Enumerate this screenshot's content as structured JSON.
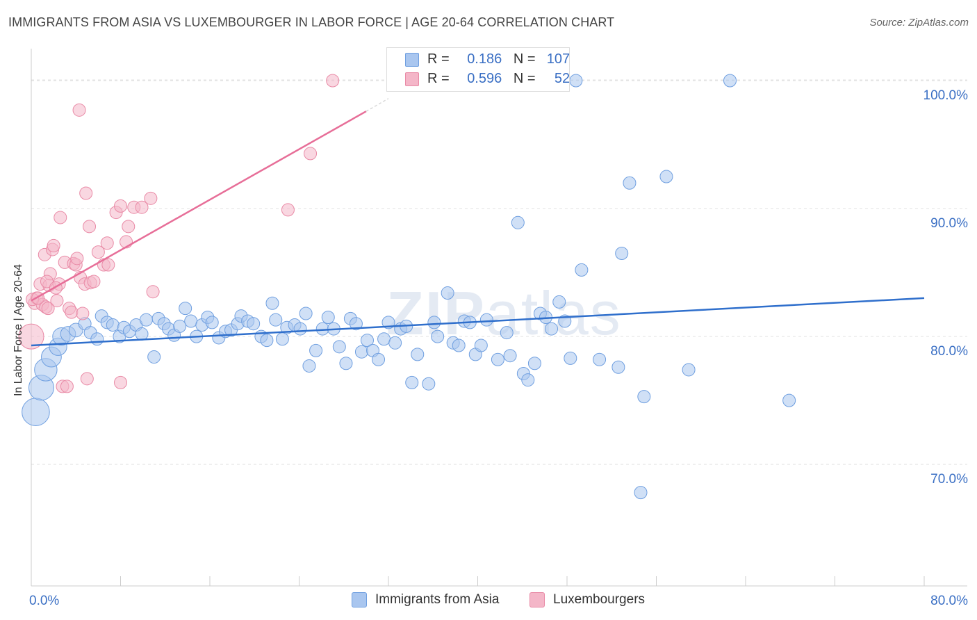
{
  "header": {
    "title": "IMMIGRANTS FROM ASIA VS LUXEMBOURGER IN LABOR FORCE | AGE 20-64 CORRELATION CHART",
    "source": "Source: ZipAtlas.com"
  },
  "watermark": {
    "bold": "ZIP",
    "light": "atlas"
  },
  "legend_stats": [
    {
      "r_label": "R =",
      "r_value": "0.186",
      "n_label": "N =",
      "n_value": "107",
      "color": "#a9c6ef"
    },
    {
      "r_label": "R =",
      "r_value": "0.596",
      "n_label": "N =",
      "n_value": "52",
      "color": "#f4b6c8"
    }
  ],
  "chart_data": {
    "type": "scatter",
    "title": "IMMIGRANTS FROM ASIA VS LUXEMBOURGER IN LABOR FORCE | AGE 20-64 CORRELATION CHART",
    "xlabel": "",
    "ylabel": "In Labor Force | Age 20-64",
    "xlim": [
      0,
      80
    ],
    "ylim": [
      60.5,
      102.5
    ],
    "x_tick_labels": [
      {
        "value": 0,
        "label": "0.0%"
      },
      {
        "value": 80,
        "label": "80.0%"
      }
    ],
    "y_tick_labels": [
      {
        "value": 70,
        "label": "70.0%"
      },
      {
        "value": 80,
        "label": "80.0%"
      },
      {
        "value": 90,
        "label": "90.0%"
      },
      {
        "value": 100,
        "label": "100.0%"
      }
    ],
    "grid": true,
    "legend_position": "bottom",
    "series": [
      {
        "name": "Immigrants from Asia",
        "color": "#a9c6ef",
        "stroke": "#6f9fe0",
        "trend_color": "#2f6fcc",
        "trend": {
          "x0": 0,
          "y0": 79.3,
          "x1": 80,
          "y1": 83.0
        },
        "points": [
          [
            0.4,
            74.1,
            2.2
          ],
          [
            0.9,
            76.0,
            2.0
          ],
          [
            1.3,
            77.4,
            1.8
          ],
          [
            1.8,
            78.4,
            1.6
          ],
          [
            2.4,
            79.2,
            1.4
          ],
          [
            2.7,
            80.0,
            1.4
          ],
          [
            3.3,
            80.2,
            1.2
          ],
          [
            4.0,
            80.5,
            1.1
          ],
          [
            4.8,
            81.0,
            1.0
          ],
          [
            5.3,
            80.3,
            1.0
          ],
          [
            5.9,
            79.8,
            1.0
          ],
          [
            6.3,
            81.6,
            1.0
          ],
          [
            6.8,
            81.1,
            1.0
          ],
          [
            7.3,
            80.9,
            1.0
          ],
          [
            7.9,
            80.0,
            1.0
          ],
          [
            8.3,
            80.7,
            1.0
          ],
          [
            8.8,
            80.4,
            1.0
          ],
          [
            9.4,
            80.9,
            1.0
          ],
          [
            9.9,
            80.2,
            1.0
          ],
          [
            10.3,
            81.3,
            1.0
          ],
          [
            11.0,
            78.4,
            1.0
          ],
          [
            11.4,
            81.4,
            1.0
          ],
          [
            11.9,
            81.0,
            1.0
          ],
          [
            12.3,
            80.6,
            1.0
          ],
          [
            12.8,
            80.1,
            1.0
          ],
          [
            13.3,
            80.8,
            1.0
          ],
          [
            13.8,
            82.2,
            1.0
          ],
          [
            14.3,
            81.2,
            1.0
          ],
          [
            14.8,
            80.0,
            1.0
          ],
          [
            15.3,
            80.9,
            1.0
          ],
          [
            15.8,
            81.5,
            1.0
          ],
          [
            16.2,
            81.1,
            1.0
          ],
          [
            16.8,
            79.9,
            1.0
          ],
          [
            17.4,
            80.4,
            1.0
          ],
          [
            17.9,
            80.5,
            1.0
          ],
          [
            18.5,
            81.0,
            1.0
          ],
          [
            18.8,
            81.6,
            1.0
          ],
          [
            19.4,
            81.2,
            1.0
          ],
          [
            19.9,
            81.0,
            1.0
          ],
          [
            20.6,
            80.0,
            1.0
          ],
          [
            21.1,
            79.7,
            1.0
          ],
          [
            21.6,
            82.6,
            1.0
          ],
          [
            21.9,
            81.3,
            1.0
          ],
          [
            22.5,
            79.8,
            1.0
          ],
          [
            22.9,
            80.7,
            1.0
          ],
          [
            23.6,
            80.9,
            1.0
          ],
          [
            24.1,
            80.6,
            1.0
          ],
          [
            24.6,
            81.8,
            1.0
          ],
          [
            24.9,
            77.7,
            1.0
          ],
          [
            25.5,
            78.9,
            1.0
          ],
          [
            26.1,
            80.6,
            1.0
          ],
          [
            26.6,
            81.5,
            1.0
          ],
          [
            27.1,
            80.6,
            1.0
          ],
          [
            27.6,
            79.2,
            1.0
          ],
          [
            28.2,
            77.9,
            1.0
          ],
          [
            28.6,
            81.4,
            1.0
          ],
          [
            29.1,
            81.0,
            1.0
          ],
          [
            29.6,
            78.8,
            1.0
          ],
          [
            30.1,
            79.7,
            1.0
          ],
          [
            30.6,
            78.9,
            1.0
          ],
          [
            31.1,
            78.2,
            1.0
          ],
          [
            31.6,
            79.8,
            1.0
          ],
          [
            32.0,
            81.1,
            1.0
          ],
          [
            32.6,
            79.5,
            1.0
          ],
          [
            33.1,
            80.6,
            1.0
          ],
          [
            33.6,
            80.8,
            1.0
          ],
          [
            34.1,
            76.4,
            1.0
          ],
          [
            34.6,
            78.6,
            1.0
          ],
          [
            35.6,
            76.3,
            1.0
          ],
          [
            36.1,
            81.1,
            1.0
          ],
          [
            36.4,
            80.0,
            1.0
          ],
          [
            37.3,
            83.4,
            1.0
          ],
          [
            37.8,
            79.5,
            1.0
          ],
          [
            38.3,
            79.3,
            1.0
          ],
          [
            38.8,
            81.2,
            1.0
          ],
          [
            39.3,
            81.1,
            1.0
          ],
          [
            39.8,
            78.6,
            1.0
          ],
          [
            40.3,
            79.3,
            1.0
          ],
          [
            40.8,
            81.3,
            1.0
          ],
          [
            41.8,
            78.2,
            1.0
          ],
          [
            42.6,
            80.3,
            1.0
          ],
          [
            42.9,
            78.5,
            1.0
          ],
          [
            43.6,
            88.9,
            1.0
          ],
          [
            44.1,
            77.1,
            1.0
          ],
          [
            44.5,
            76.6,
            1.0
          ],
          [
            45.1,
            77.9,
            1.0
          ],
          [
            45.6,
            81.8,
            1.0
          ],
          [
            46.1,
            81.5,
            1.0
          ],
          [
            46.6,
            80.6,
            1.0
          ],
          [
            47.3,
            82.7,
            1.0
          ],
          [
            47.8,
            81.2,
            1.0
          ],
          [
            48.3,
            78.3,
            1.0
          ],
          [
            48.8,
            100.0,
            1.0
          ],
          [
            49.3,
            85.2,
            1.0
          ],
          [
            50.9,
            78.2,
            1.0
          ],
          [
            52.6,
            77.6,
            1.0
          ],
          [
            52.9,
            86.5,
            1.0
          ],
          [
            53.6,
            92.0,
            1.0
          ],
          [
            54.6,
            67.8,
            1.0
          ],
          [
            54.9,
            75.3,
            1.0
          ],
          [
            56.9,
            92.5,
            1.0
          ],
          [
            58.9,
            77.4,
            1.0
          ],
          [
            62.6,
            100.0,
            1.0
          ],
          [
            67.9,
            75.0,
            1.0
          ]
        ]
      },
      {
        "name": "Luxembourgers",
        "color": "#f4b6c8",
        "stroke": "#e98aa6",
        "trend_color": "#e76e98",
        "trend": {
          "x0": 0,
          "y0": 82.8,
          "x1": 30.0,
          "y1": 97.6
        },
        "trend_dashed_to": {
          "x": 32.0,
          "y": 98.6
        },
        "points": [
          [
            0.0,
            80.0,
            2.0
          ],
          [
            0.3,
            82.6,
            1.0
          ],
          [
            0.5,
            83.0,
            1.0
          ],
          [
            0.8,
            84.1,
            1.0
          ],
          [
            1.0,
            82.5,
            1.0
          ],
          [
            1.2,
            86.4,
            1.0
          ],
          [
            1.3,
            82.3,
            1.0
          ],
          [
            1.5,
            82.2,
            1.0
          ],
          [
            1.6,
            84.0,
            1.0
          ],
          [
            1.7,
            84.9,
            1.0
          ],
          [
            1.9,
            86.8,
            1.0
          ],
          [
            2.0,
            87.1,
            1.0
          ],
          [
            2.3,
            82.8,
            1.0
          ],
          [
            2.5,
            84.1,
            1.0
          ],
          [
            2.6,
            89.3,
            1.0
          ],
          [
            2.8,
            76.1,
            1.0
          ],
          [
            3.0,
            85.8,
            1.0
          ],
          [
            3.2,
            76.1,
            1.0
          ],
          [
            3.4,
            82.2,
            1.0
          ],
          [
            3.6,
            81.9,
            1.0
          ],
          [
            3.8,
            85.7,
            1.0
          ],
          [
            4.0,
            85.6,
            1.0
          ],
          [
            4.1,
            86.1,
            1.0
          ],
          [
            4.3,
            97.7,
            1.0
          ],
          [
            4.4,
            84.6,
            1.0
          ],
          [
            4.6,
            81.8,
            1.0
          ],
          [
            4.8,
            84.1,
            1.0
          ],
          [
            4.9,
            91.2,
            1.0
          ],
          [
            5.0,
            76.7,
            1.0
          ],
          [
            5.2,
            88.6,
            1.0
          ],
          [
            5.3,
            84.2,
            1.0
          ],
          [
            5.6,
            84.3,
            1.0
          ],
          [
            6.0,
            86.6,
            1.0
          ],
          [
            6.5,
            85.6,
            1.0
          ],
          [
            6.8,
            87.3,
            1.0
          ],
          [
            6.9,
            85.6,
            1.0
          ],
          [
            7.6,
            89.7,
            1.0
          ],
          [
            8.0,
            90.2,
            1.0
          ],
          [
            8.0,
            76.4,
            1.0
          ],
          [
            8.5,
            87.4,
            1.0
          ],
          [
            8.7,
            88.6,
            1.0
          ],
          [
            9.2,
            90.1,
            1.0
          ],
          [
            9.9,
            90.1,
            1.0
          ],
          [
            10.7,
            90.8,
            1.0
          ],
          [
            10.9,
            83.5,
            1.0
          ],
          [
            23.0,
            89.9,
            1.0
          ],
          [
            25.0,
            94.3,
            1.0
          ],
          [
            27.0,
            100.0,
            1.0
          ],
          [
            0.1,
            82.9,
            1.0
          ],
          [
            0.6,
            83.0,
            1.0
          ],
          [
            1.4,
            84.3,
            1.0
          ],
          [
            2.2,
            83.8,
            1.0
          ]
        ]
      }
    ]
  }
}
